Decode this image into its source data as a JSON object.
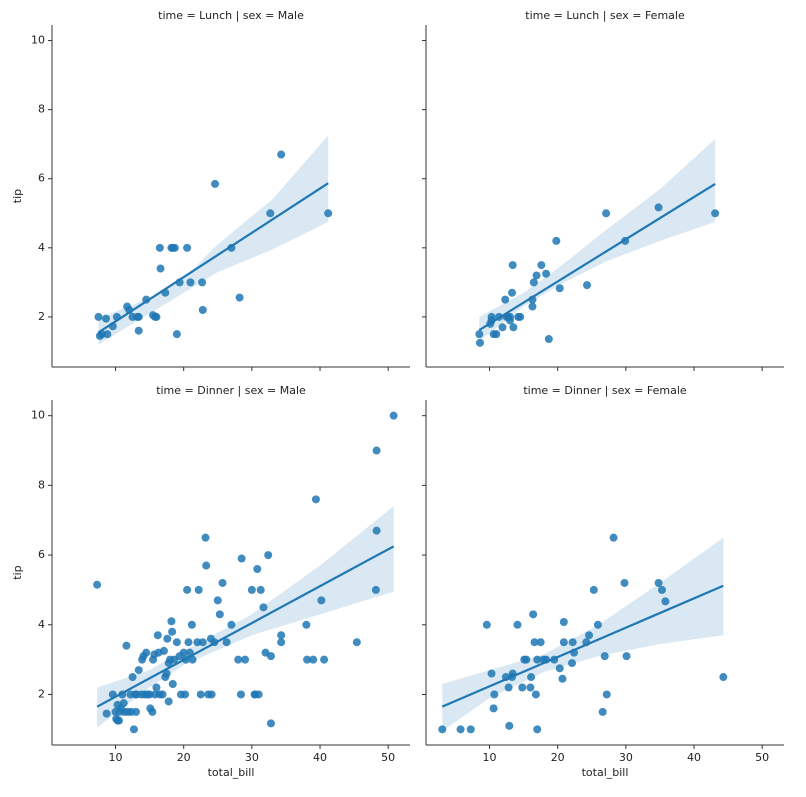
{
  "chart_data": [
    {
      "type": "scatter",
      "title": "time = Lunch | sex = Male",
      "ylabel": "tip",
      "color": "#1f77b4",
      "x": [
        7.5,
        7.7,
        8,
        8.8,
        8.6,
        9.6,
        10.2,
        11.7,
        12,
        12.5,
        13.2,
        13.4,
        14.5,
        15.5,
        15.8,
        16,
        16.5,
        16.6,
        17.3,
        18.2,
        18.7,
        19,
        19.4,
        20.5,
        21,
        22.7,
        22.8,
        24.6,
        27,
        28.2,
        32.7,
        34.3,
        41.2,
        13.4,
        18.4
      ],
      "values": [
        2.0,
        1.45,
        1.5,
        1.5,
        1.95,
        1.73,
        2.0,
        2.3,
        2.2,
        2.0,
        2.0,
        1.6,
        2.5,
        2.05,
        2.0,
        2.0,
        4.0,
        3.4,
        2.7,
        4.0,
        4.0,
        1.5,
        3.0,
        4.0,
        3.0,
        3.0,
        2.2,
        5.85,
        4.0,
        2.56,
        5.0,
        6.7,
        5.0,
        2.0,
        4.0
      ],
      "line": {
        "x": [
          7.5,
          41.2
        ],
        "y": [
          1.55,
          5.87
        ]
      },
      "band": {
        "x": [
          7.5,
          15,
          20,
          25,
          33,
          41.2
        ],
        "lower": [
          1.2,
          2.1,
          2.7,
          3.3,
          3.95,
          4.75
        ],
        "upper": [
          1.95,
          2.55,
          3.1,
          4.1,
          5.4,
          7.25
        ]
      },
      "xlim": [
        0.68,
        53.2
      ],
      "ylim": [
        0.55,
        10.45
      ],
      "xticks": [
        10,
        20,
        30,
        40,
        50
      ],
      "yticks": [
        2,
        4,
        6,
        8,
        10
      ]
    },
    {
      "type": "scatter",
      "title": "time = Lunch | sex = Female",
      "color": "#1f77b4",
      "x": [
        8.5,
        8.6,
        10.1,
        10.3,
        10.3,
        10.6,
        11,
        11.4,
        11.9,
        12.3,
        12.5,
        12.7,
        13,
        13,
        13.3,
        13.4,
        13.5,
        14.2,
        14.5,
        16.3,
        16.3,
        16.5,
        16.9,
        17.6,
        18.3,
        18.7,
        19.8,
        20.3,
        24.3,
        27.1,
        29.9,
        34.8,
        43.1
      ],
      "values": [
        1.5,
        1.25,
        1.8,
        2.0,
        1.9,
        1.5,
        1.5,
        2.0,
        1.7,
        2.5,
        2.0,
        2.0,
        1.9,
        2.0,
        2.7,
        3.5,
        1.7,
        2.0,
        2.0,
        2.3,
        2.5,
        3.0,
        3.2,
        3.5,
        3.25,
        1.36,
        4.2,
        2.83,
        2.92,
        5.0,
        4.2,
        5.17,
        5.0
      ],
      "line": {
        "x": [
          8.5,
          43.1
        ],
        "y": [
          1.62,
          5.85
        ]
      },
      "band": {
        "x": [
          8.5,
          15,
          20,
          27,
          35,
          43.1
        ],
        "lower": [
          1.3,
          2.3,
          2.9,
          3.6,
          4.2,
          4.75
        ],
        "upper": [
          2.0,
          2.7,
          3.4,
          4.5,
          5.7,
          7.15
        ]
      },
      "xlim": [
        0.68,
        53.2
      ],
      "ylim": [
        0.55,
        10.45
      ],
      "xticks": [
        10,
        20,
        30,
        40,
        50
      ],
      "yticks": [
        2,
        4,
        6,
        8,
        10
      ]
    },
    {
      "type": "scatter",
      "title": "time = Dinner | sex = Male",
      "xlabel": "total_bill",
      "ylabel": "tip",
      "color": "#1f77b4",
      "x": [
        7.3,
        8.7,
        9.6,
        10,
        10.1,
        10.3,
        10.3,
        10.5,
        10.6,
        10.8,
        11,
        11.2,
        11.3,
        11.6,
        11.8,
        12.2,
        12.3,
        12.5,
        12.7,
        12.9,
        13,
        13.1,
        13.4,
        13.8,
        13.9,
        14.1,
        14.3,
        14.5,
        14.7,
        15,
        15.1,
        15.4,
        15.5,
        15.7,
        15.8,
        16,
        16.2,
        16.5,
        16.3,
        16.9,
        17.1,
        17.3,
        17.5,
        17.6,
        17.8,
        17.8,
        18,
        18.2,
        18.3,
        18.4,
        18.6,
        19,
        19.4,
        19.6,
        20,
        20.2,
        20.3,
        20.5,
        20.7,
        20.9,
        21.2,
        21.3,
        22,
        22.2,
        22.5,
        22.8,
        23.2,
        23.3,
        23.6,
        24,
        24.1,
        24.5,
        25,
        25.3,
        25.7,
        26.3,
        27,
        28,
        28.4,
        28.5,
        29,
        30,
        30.4,
        30.8,
        31.3,
        31.7,
        32,
        32.4,
        32.8,
        32.8,
        34.3,
        34.3,
        38,
        38.1,
        39,
        39.4,
        40.2,
        40.6,
        45.4,
        48.2,
        48.3,
        48.3,
        50.8,
        31,
        30.5
      ],
      "values": [
        5.15,
        1.45,
        2.0,
        1.5,
        1.3,
        1.25,
        1.7,
        1.25,
        1.5,
        1.6,
        2.0,
        1.75,
        1.5,
        3.4,
        1.5,
        2.0,
        1.5,
        2.5,
        1.0,
        2.0,
        1.5,
        2.0,
        2.7,
        2.0,
        3.0,
        3.1,
        2.0,
        3.2,
        2.0,
        2.0,
        1.6,
        1.5,
        3.0,
        3.15,
        2.0,
        2.2,
        3.7,
        2.0,
        3.2,
        2.0,
        3.25,
        2.5,
        2.6,
        3.6,
        2.9,
        1.8,
        3.0,
        4.1,
        3.8,
        2.3,
        3.0,
        3.5,
        3.1,
        2.0,
        3.2,
        2.0,
        3.0,
        5.0,
        3.5,
        3.2,
        4.0,
        3.0,
        3.5,
        5.0,
        2.0,
        3.5,
        6.5,
        5.7,
        2.0,
        3.6,
        2.0,
        3.5,
        4.7,
        4.3,
        5.2,
        3.5,
        4.0,
        3.0,
        2.0,
        5.9,
        3.0,
        5.0,
        2.0,
        5.6,
        5.0,
        4.5,
        3.2,
        6.0,
        1.17,
        3.1,
        3.5,
        3.7,
        4.0,
        3.0,
        3.0,
        7.6,
        4.7,
        3.0,
        3.5,
        5.0,
        6.7,
        9.0,
        10.0,
        2.0,
        2.0
      ],
      "line": {
        "x": [
          7.3,
          50.8
        ],
        "y": [
          1.65,
          6.25
        ]
      },
      "band": {
        "x": [
          7.3,
          15,
          20,
          30,
          40,
          50.8
        ],
        "lower": [
          1.05,
          2.2,
          2.85,
          3.7,
          4.3,
          4.95
        ],
        "upper": [
          2.2,
          2.7,
          3.25,
          4.3,
          5.7,
          7.4
        ]
      },
      "xlim": [
        0.68,
        53.2
      ],
      "ylim": [
        0.55,
        10.45
      ],
      "xticks": [
        10,
        20,
        30,
        40,
        50
      ],
      "yticks": [
        2,
        4,
        6,
        8,
        10
      ]
    },
    {
      "type": "scatter",
      "title": "time = Dinner | sex = Female",
      "xlabel": "total_bill",
      "color": "#1f77b4",
      "x": [
        3.07,
        5.75,
        7.25,
        9.6,
        10.3,
        10.6,
        10.7,
        12.4,
        12.8,
        12.9,
        13.4,
        13.3,
        14.1,
        14.8,
        15.1,
        15.4,
        16,
        16.1,
        16.4,
        16.6,
        16.8,
        17,
        17,
        17.5,
        17.9,
        18.3,
        19.5,
        20.3,
        20.7,
        20.9,
        20.9,
        22.1,
        22.2,
        22.4,
        24.2,
        24.6,
        25.3,
        25.9,
        26.6,
        26.9,
        27.2,
        28.2,
        29.8,
        30.1,
        34.8,
        35.3,
        35.8,
        44.3
      ],
      "values": [
        1.0,
        1.0,
        1.0,
        4.0,
        2.6,
        1.6,
        2.0,
        2.5,
        2.2,
        1.1,
        2.6,
        2.5,
        4.0,
        2.2,
        3.0,
        3.0,
        2.2,
        2.5,
        4.3,
        3.5,
        2.0,
        1.0,
        3.0,
        3.5,
        3.0,
        3.0,
        3.0,
        2.75,
        2.45,
        4.08,
        3.5,
        2.9,
        3.5,
        3.2,
        3.5,
        3.7,
        5.0,
        4.0,
        1.5,
        3.1,
        2.0,
        6.5,
        5.2,
        3.1,
        5.2,
        5.0,
        4.67,
        2.5
      ],
      "line": {
        "x": [
          3.07,
          44.3
        ],
        "y": [
          1.65,
          5.12
        ]
      },
      "band": {
        "x": [
          3.07,
          10,
          18,
          26,
          35,
          44.3
        ],
        "lower": [
          0.95,
          1.9,
          2.65,
          3.1,
          3.45,
          3.7
        ],
        "upper": [
          2.3,
          2.7,
          3.15,
          4.0,
          5.2,
          6.5
        ]
      },
      "xlim": [
        0.68,
        53.2
      ],
      "ylim": [
        0.55,
        10.45
      ],
      "xticks": [
        10,
        20,
        30,
        40,
        50
      ],
      "yticks": [
        2,
        4,
        6,
        8,
        10
      ]
    }
  ]
}
